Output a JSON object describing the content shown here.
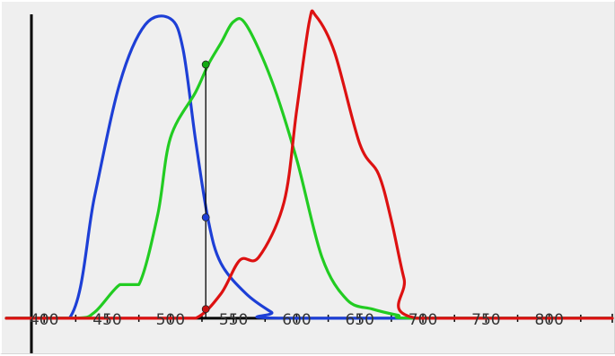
{
  "chart_data": {
    "type": "line",
    "title": "",
    "xlabel": "",
    "ylabel": "",
    "xlim": [
      370,
      850
    ],
    "ylim": [
      -0.1,
      1.0
    ],
    "grid": false,
    "legend": "none",
    "x_ticks": [
      400,
      450,
      500,
      550,
      600,
      650,
      700,
      750,
      800
    ],
    "x_tick_labels": [
      "400",
      "450",
      "500",
      "550",
      "600",
      "650",
      "700",
      "750",
      "800"
    ],
    "series": [
      {
        "color": "#1d3fd6",
        "points": [
          [
            370,
            0
          ],
          [
            420,
            0
          ],
          [
            440,
            0.4
          ],
          [
            460,
            0.77
          ],
          [
            480,
            0.96
          ],
          [
            500,
            0.98
          ],
          [
            510,
            0.88
          ],
          [
            520,
            0.58
          ],
          [
            530,
            0.32
          ],
          [
            540,
            0.18
          ],
          [
            560,
            0.08
          ],
          [
            580,
            0.02
          ],
          [
            590,
            0
          ],
          [
            850,
            0
          ]
        ]
      },
      {
        "color": "#22cc22",
        "points": [
          [
            370,
            0
          ],
          [
            425,
            0
          ],
          [
            440,
            0.02
          ],
          [
            460,
            0.11
          ],
          [
            475,
            0.11
          ],
          [
            490,
            0.34
          ],
          [
            500,
            0.59
          ],
          [
            520,
            0.74
          ],
          [
            530,
            0.83
          ],
          [
            540,
            0.9
          ],
          [
            550,
            0.97
          ],
          [
            560,
            0.96
          ],
          [
            580,
            0.78
          ],
          [
            600,
            0.52
          ],
          [
            620,
            0.2
          ],
          [
            640,
            0.06
          ],
          [
            660,
            0.03
          ],
          [
            680,
            0.01
          ],
          [
            695,
            0
          ],
          [
            850,
            0
          ]
        ]
      },
      {
        "color": "#dd1111",
        "points": [
          [
            370,
            0
          ],
          [
            495,
            0
          ],
          [
            520,
            0
          ],
          [
            540,
            0.08
          ],
          [
            555,
            0.19
          ],
          [
            570,
            0.2
          ],
          [
            590,
            0.38
          ],
          [
            600,
            0.68
          ],
          [
            610,
            0.97
          ],
          [
            615,
            0.99
          ],
          [
            630,
            0.87
          ],
          [
            650,
            0.57
          ],
          [
            665,
            0.47
          ],
          [
            675,
            0.32
          ],
          [
            685,
            0.13
          ],
          [
            695,
            0
          ],
          [
            850,
            0
          ]
        ]
      }
    ],
    "annotations": [
      {
        "type": "vertical-line",
        "x": 528,
        "y_range": [
          0,
          0.83
        ],
        "color": "#000000"
      },
      {
        "type": "marker",
        "x": 528,
        "y": 0.83,
        "series": "green",
        "color": "#11aa11"
      },
      {
        "type": "marker",
        "x": 528,
        "y": 0.33,
        "series": "blue",
        "color": "#1d3fd6"
      },
      {
        "type": "marker",
        "x": 528,
        "y": 0.03,
        "series": "red",
        "color": "#c81010"
      }
    ]
  }
}
